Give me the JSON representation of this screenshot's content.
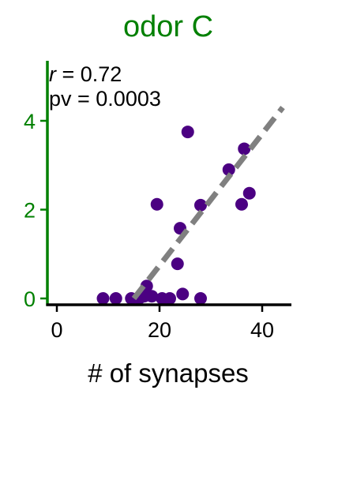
{
  "chart_data": {
    "type": "scatter",
    "title": "odor C",
    "xlabel": "# of synapses",
    "ylabel": "",
    "xlim": [
      -2,
      45
    ],
    "ylim": [
      -0.15,
      5.35
    ],
    "xticks": [
      0,
      20,
      40
    ],
    "yticks": [
      0,
      2,
      4
    ],
    "xtick_labels": [
      "0",
      "20",
      "40"
    ],
    "ytick_labels": [
      "0",
      "2",
      "4"
    ],
    "grid": false,
    "annotations": {
      "r_symbol": "r",
      "r_value": " = 0.72",
      "pv_text": "pv = 0.0003"
    },
    "series": [
      {
        "points": [
          {
            "x": 9,
            "y": 0.0
          },
          {
            "x": 11.5,
            "y": 0.0
          },
          {
            "x": 14.5,
            "y": 0.0
          },
          {
            "x": 16,
            "y": 0.0
          },
          {
            "x": 17,
            "y": 0.05
          },
          {
            "x": 18.5,
            "y": 0.05
          },
          {
            "x": 20.5,
            "y": 0.0
          },
          {
            "x": 22,
            "y": 0.0
          },
          {
            "x": 24.5,
            "y": 0.1
          },
          {
            "x": 28,
            "y": 0.0
          },
          {
            "x": 17.5,
            "y": 0.28
          },
          {
            "x": 23.5,
            "y": 0.78
          },
          {
            "x": 24,
            "y": 1.58
          },
          {
            "x": 19.5,
            "y": 2.12
          },
          {
            "x": 28,
            "y": 2.1
          },
          {
            "x": 25.5,
            "y": 3.75
          },
          {
            "x": 33.5,
            "y": 2.9
          },
          {
            "x": 36.5,
            "y": 3.37
          },
          {
            "x": 36,
            "y": 2.12
          },
          {
            "x": 37.5,
            "y": 2.37
          }
        ]
      }
    ],
    "fit_line": {
      "x": [
        15,
        44
      ],
      "y": [
        0.0,
        4.3
      ]
    }
  },
  "colors": {
    "title": "#008000",
    "y_axis": "#008000",
    "y_ticks": "#008000",
    "x_axis": "#000000",
    "points": "#4b0082",
    "fit_line": "#808080"
  }
}
